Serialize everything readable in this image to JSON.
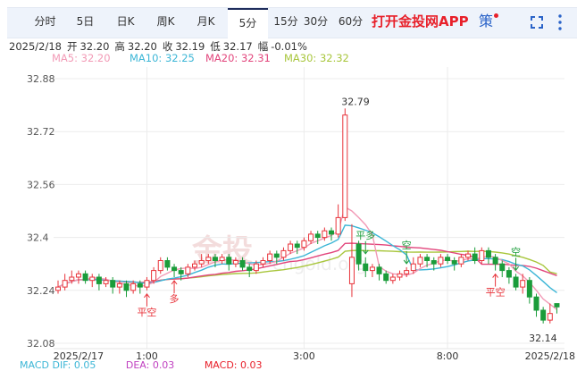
{
  "tabs": [
    {
      "label": "分时"
    },
    {
      "label": "5日"
    },
    {
      "label": "日K"
    },
    {
      "label": "周K"
    },
    {
      "label": "月K"
    },
    {
      "label": "5分",
      "active": true
    },
    {
      "label": "15分"
    },
    {
      "label": "30分"
    },
    {
      "label": "60分"
    }
  ],
  "toolbar": {
    "open_app": "打开金投网APP",
    "strategy": "策",
    "fullscreen_icon": "fullscreen-icon",
    "more_icon": "more-vertical-icon"
  },
  "info": {
    "date": "2025/2/18",
    "open_label": "开",
    "open": "32.20",
    "high_label": "高",
    "high": "32.20",
    "close_label": "收",
    "close": "32.19",
    "low_label": "低",
    "low": "32.17",
    "change_label": "幅",
    "change": "-0.01%"
  },
  "ma": {
    "ma5": "MA5: 32.20",
    "ma10": "MA10: 32.25",
    "ma20": "MA20: 32.31",
    "ma30": "MA30: 32.32"
  },
  "macd": {
    "dif": "MACD  DIF: 0.05",
    "dea": "DEA: 0.03",
    "macd": "MACD: 0.03"
  },
  "colors": {
    "up": "#e8333a",
    "down": "#1a9c3a",
    "ma5": "#f29ab6",
    "ma10": "#3cb6d6",
    "ma20": "#e2457c",
    "ma30": "#a8c63c",
    "grid": "#ececec"
  },
  "chart_data": {
    "type": "candlestick",
    "yticks": [
      "32.88",
      "32.72",
      "32.56",
      "32.4",
      "32.24",
      "32.08"
    ],
    "ylim": [
      32.08,
      32.88
    ],
    "xticks": [
      {
        "label": "2025/2/17",
        "index": 3
      },
      {
        "label": "1:00",
        "index": 13
      },
      {
        "label": "3:00",
        "index": 36
      },
      {
        "label": "8:00",
        "index": 57
      },
      {
        "label": "2025/2/18",
        "index": 72
      }
    ],
    "max_label": "32.79",
    "min_label": "32.14",
    "signals": [
      {
        "text": "平空",
        "index": 13,
        "type": "buy"
      },
      {
        "text": "多",
        "index": 17,
        "type": "buy"
      },
      {
        "text": "平多",
        "index": 45,
        "type": "sell"
      },
      {
        "text": "空",
        "index": 51,
        "type": "sell"
      },
      {
        "text": "空",
        "index": 67,
        "type": "sell"
      },
      {
        "text": "平空",
        "index": 64,
        "type": "buy"
      }
    ],
    "watermark": "金投 cngold.org",
    "ohlc": [
      [
        32.24,
        32.27,
        32.23,
        32.25
      ],
      [
        32.25,
        32.29,
        32.24,
        32.27
      ],
      [
        32.27,
        32.3,
        32.26,
        32.28
      ],
      [
        32.28,
        32.3,
        32.26,
        32.29
      ],
      [
        32.29,
        32.3,
        32.26,
        32.27
      ],
      [
        32.27,
        32.29,
        32.25,
        32.28
      ],
      [
        32.28,
        32.29,
        32.24,
        32.26
      ],
      [
        32.26,
        32.28,
        32.25,
        32.27
      ],
      [
        32.27,
        32.28,
        32.23,
        32.25
      ],
      [
        32.25,
        32.27,
        32.23,
        32.26
      ],
      [
        32.26,
        32.27,
        32.22,
        32.24
      ],
      [
        32.24,
        32.27,
        32.23,
        32.26
      ],
      [
        32.26,
        32.27,
        32.23,
        32.25
      ],
      [
        32.25,
        32.28,
        32.24,
        32.27
      ],
      [
        32.27,
        32.31,
        32.26,
        32.3
      ],
      [
        32.3,
        32.34,
        32.29,
        32.33
      ],
      [
        32.33,
        32.34,
        32.3,
        32.31
      ],
      [
        32.31,
        32.32,
        32.28,
        32.3
      ],
      [
        32.3,
        32.31,
        32.27,
        32.29
      ],
      [
        32.29,
        32.32,
        32.28,
        32.31
      ],
      [
        32.31,
        32.33,
        32.3,
        32.32
      ],
      [
        32.32,
        32.35,
        32.31,
        32.33
      ],
      [
        32.33,
        32.35,
        32.32,
        32.34
      ],
      [
        32.34,
        32.35,
        32.31,
        32.33
      ],
      [
        32.33,
        32.35,
        32.32,
        32.34
      ],
      [
        32.34,
        32.35,
        32.3,
        32.32
      ],
      [
        32.32,
        32.34,
        32.31,
        32.33
      ],
      [
        32.33,
        32.34,
        32.3,
        32.31
      ],
      [
        32.31,
        32.32,
        32.28,
        32.3
      ],
      [
        32.3,
        32.33,
        32.29,
        32.32
      ],
      [
        32.32,
        32.34,
        32.31,
        32.33
      ],
      [
        32.33,
        32.36,
        32.32,
        32.35
      ],
      [
        32.35,
        32.36,
        32.32,
        32.34
      ],
      [
        32.34,
        32.37,
        32.33,
        32.36
      ],
      [
        32.36,
        32.39,
        32.35,
        32.38
      ],
      [
        32.38,
        32.39,
        32.35,
        32.37
      ],
      [
        32.37,
        32.4,
        32.36,
        32.39
      ],
      [
        32.39,
        32.42,
        32.38,
        32.41
      ],
      [
        32.41,
        32.42,
        32.38,
        32.4
      ],
      [
        32.4,
        32.43,
        32.39,
        32.42
      ],
      [
        32.42,
        32.43,
        32.39,
        32.41
      ],
      [
        32.41,
        32.5,
        32.4,
        32.46
      ],
      [
        32.46,
        32.79,
        32.45,
        32.77
      ],
      [
        32.26,
        32.44,
        32.22,
        32.34
      ],
      [
        32.38,
        32.39,
        32.3,
        32.32
      ],
      [
        32.32,
        32.34,
        32.28,
        32.3
      ],
      [
        32.3,
        32.32,
        32.28,
        32.31
      ],
      [
        32.31,
        32.32,
        32.27,
        32.29
      ],
      [
        32.29,
        32.3,
        32.26,
        32.27
      ],
      [
        32.27,
        32.29,
        32.26,
        32.28
      ],
      [
        32.28,
        32.3,
        32.27,
        32.29
      ],
      [
        32.29,
        32.31,
        32.28,
        32.3
      ],
      [
        32.3,
        32.34,
        32.29,
        32.32
      ],
      [
        32.32,
        32.35,
        32.31,
        32.34
      ],
      [
        32.34,
        32.35,
        32.31,
        32.33
      ],
      [
        32.33,
        32.34,
        32.3,
        32.32
      ],
      [
        32.32,
        32.35,
        32.31,
        32.34
      ],
      [
        32.34,
        32.35,
        32.32,
        32.33
      ],
      [
        32.33,
        32.34,
        32.3,
        32.32
      ],
      [
        32.32,
        32.35,
        32.31,
        32.34
      ],
      [
        32.34,
        32.36,
        32.33,
        32.35
      ],
      [
        32.35,
        32.37,
        32.32,
        32.33
      ],
      [
        32.33,
        32.37,
        32.32,
        32.36
      ],
      [
        32.36,
        32.37,
        32.32,
        32.34
      ],
      [
        32.34,
        32.35,
        32.3,
        32.32
      ],
      [
        32.32,
        32.33,
        32.28,
        32.3
      ],
      [
        32.3,
        32.31,
        32.26,
        32.28
      ],
      [
        32.28,
        32.29,
        32.24,
        32.25
      ],
      [
        32.25,
        32.29,
        32.23,
        32.27
      ],
      [
        32.27,
        32.28,
        32.2,
        32.22
      ],
      [
        32.22,
        32.23,
        32.16,
        32.18
      ],
      [
        32.18,
        32.19,
        32.14,
        32.15
      ],
      [
        32.15,
        32.2,
        32.14,
        32.17
      ],
      [
        32.2,
        32.2,
        32.17,
        32.19
      ]
    ]
  }
}
